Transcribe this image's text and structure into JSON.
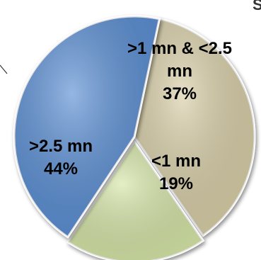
{
  "chart_data": {
    "type": "pie",
    "slices": [
      {
        "label_lines": [
          ">1 mn & <2.5",
          "mn",
          "37%"
        ],
        "value": 37,
        "color": "#d9cfa8"
      },
      {
        "label_lines": [
          "<1 mn",
          "19%"
        ],
        "value": 19,
        "color": "#d6e6a8"
      },
      {
        "label_lines": [
          ">2.5 mn",
          "44%"
        ],
        "value": 44,
        "color": "#5b8fd4"
      }
    ]
  }
}
